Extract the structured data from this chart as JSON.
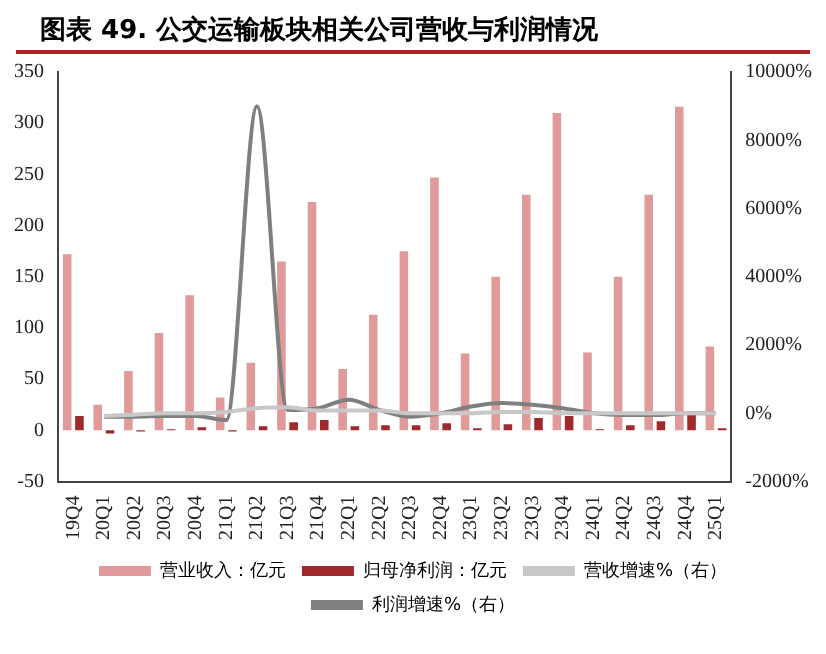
{
  "chart_data": {
    "type": "bar",
    "title": "图表 49. 公交运输板块相关公司营收与利润情况",
    "categories": [
      "19Q4",
      "20Q1",
      "20Q2",
      "20Q3",
      "20Q4",
      "21Q1",
      "21Q2",
      "21Q3",
      "21Q4",
      "22Q1",
      "22Q2",
      "22Q3",
      "22Q4",
      "23Q1",
      "23Q2",
      "23Q3",
      "23Q4",
      "24Q1",
      "24Q2",
      "24Q3",
      "24Q4",
      "25Q1"
    ],
    "series": [
      {
        "name": "营业收入：亿元",
        "color": "#e09a9a",
        "values": [
          172,
          25,
          58,
          95,
          132,
          32,
          66,
          165,
          223,
          60,
          113,
          175,
          247,
          75,
          150,
          230,
          310,
          76,
          150,
          230,
          316,
          82
        ]
      },
      {
        "name": "归母净利润：亿元",
        "color": "#9e2a2b",
        "values": [
          14,
          -3,
          -1,
          1,
          3,
          -1,
          4,
          8,
          10,
          4,
          5,
          5,
          7,
          2,
          6,
          12,
          14,
          1,
          5,
          9,
          15,
          2
        ]
      },
      {
        "name": "营收增速%（右）",
        "type": "line",
        "axis": "y2",
        "color": "#c8c8c8",
        "values": [
          null,
          -80,
          -40,
          0,
          0,
          40,
          150,
          180,
          80,
          80,
          80,
          0,
          0,
          0,
          40,
          40,
          0,
          0,
          0,
          0,
          0,
          0
        ]
      },
      {
        "name": "利润增速%（右）",
        "type": "line",
        "axis": "y2",
        "color": "#7f7f7f",
        "values": [
          null,
          -100,
          -100,
          -80,
          -80,
          -200,
          9000,
          100,
          150,
          400,
          100,
          -100,
          0,
          200,
          300,
          250,
          150,
          0,
          -50,
          -50,
          0,
          0
        ]
      }
    ],
    "ylim": [
      -50,
      350
    ],
    "yticks": [
      -50,
      0,
      50,
      100,
      150,
      200,
      250,
      300,
      350
    ],
    "y2lim": [
      -2000,
      10000
    ],
    "y2ticks": [
      {
        "value": -2000,
        "label": "-2000%"
      },
      {
        "value": 0,
        "label": "0%"
      },
      {
        "value": 2000,
        "label": "2000%"
      },
      {
        "value": 4000,
        "label": "4000%"
      },
      {
        "value": 6000,
        "label": "6000%"
      },
      {
        "value": 8000,
        "label": "8000%"
      },
      {
        "value": 10000,
        "label": "10000%"
      }
    ],
    "grid": false,
    "legend": "bottom",
    "marker": "none",
    "line_style": "solid"
  }
}
